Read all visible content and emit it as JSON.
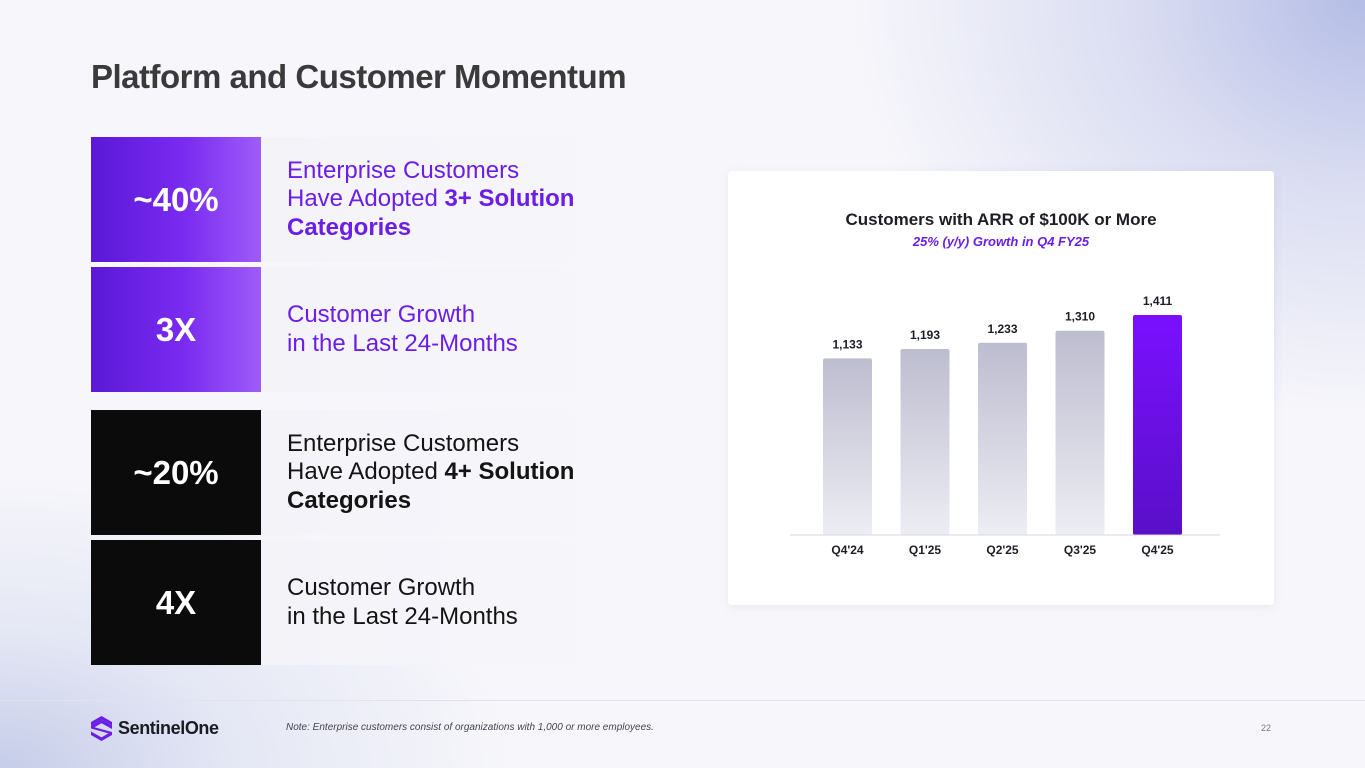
{
  "title": "Platform and Customer Momentum",
  "stats": [
    {
      "value": "~40%",
      "line1": "Enterprise Customers",
      "line2_plain": "Have Adopted ",
      "line2_bold": "3+ Solution",
      "line3_bold": "Categories"
    },
    {
      "value": "3X",
      "line1": "Customer Growth",
      "line2": "in the Last 24-Months"
    },
    {
      "value": "~20%",
      "line1": "Enterprise Customers",
      "line2_plain": "Have Adopted ",
      "line2_bold": "4+ Solution",
      "line3_bold": "Categories"
    },
    {
      "value": "4X",
      "line1": "Customer Growth",
      "line2": "in the Last 24-Months"
    }
  ],
  "colors": {
    "accent_purple": "#6a1ee6",
    "bar_gray_top": "#bdbdd0",
    "bar_gray_bottom": "#ededf4",
    "bar_highlight_top": "#7a10ff",
    "bar_highlight_bottom": "#5a0fc8"
  },
  "chart_data": {
    "type": "bar",
    "title": "Customers with ARR of $100K or More",
    "subtitle": "25% (y/y) Growth in Q4 FY25",
    "categories": [
      "Q4'24",
      "Q1'25",
      "Q2'25",
      "Q3'25",
      "Q4'25"
    ],
    "values": [
      1133,
      1193,
      1233,
      1310,
      1411
    ],
    "value_labels": [
      "1,133",
      "1,193",
      "1,233",
      "1,310",
      "1,411"
    ],
    "highlight_index": 4,
    "xlabel": "",
    "ylabel": "",
    "ylim": [
      0,
      1411
    ],
    "grid": false
  },
  "footer": {
    "logo_text": "SentinelOne",
    "note": "Note: Enterprise customers consist of organizations with 1,000 or more employees.",
    "page_number": "22"
  }
}
